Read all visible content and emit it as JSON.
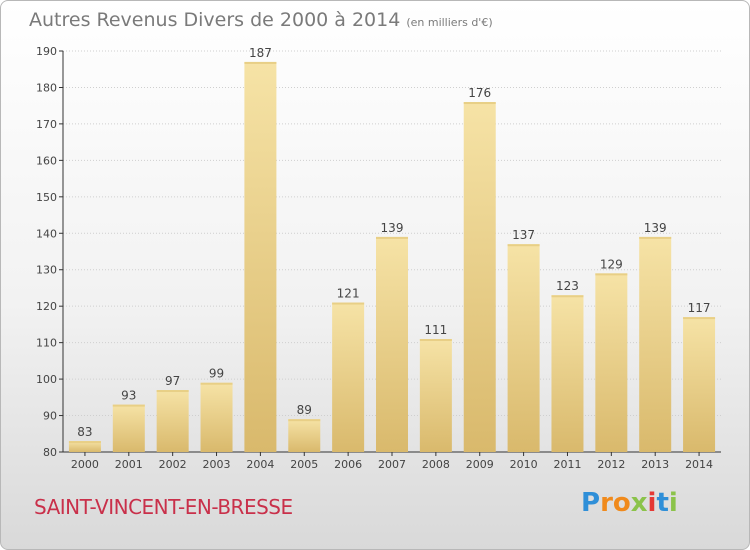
{
  "title": "Autres Revenus Divers de 2000 à 2014",
  "subtitle": "(en milliers d'€)",
  "commune": "SAINT-VINCENT-EN-BRESSE",
  "logo": {
    "text": "Proxiti",
    "letters": [
      {
        "ch": "P",
        "color": "#2f8fd8"
      },
      {
        "ch": "r",
        "color": "#f08a1c"
      },
      {
        "ch": "o",
        "color": "#f08a1c"
      },
      {
        "ch": "x",
        "color": "#8bc34a"
      },
      {
        "ch": "i",
        "color": "#e53935"
      },
      {
        "ch": "t",
        "color": "#2f8fd8"
      },
      {
        "ch": "i",
        "color": "#8bc34a"
      }
    ]
  },
  "colors": {
    "bar_light": "#f6e3a6",
    "bar_dark": "#d9b96c",
    "grid": "#cfcfcf",
    "axis": "#333333"
  },
  "chart_data": {
    "type": "bar",
    "categories": [
      "2000",
      "2001",
      "2002",
      "2003",
      "2004",
      "2005",
      "2006",
      "2007",
      "2008",
      "2009",
      "2010",
      "2011",
      "2012",
      "2013",
      "2014"
    ],
    "values": [
      83,
      93,
      97,
      99,
      187,
      89,
      121,
      139,
      111,
      176,
      137,
      123,
      129,
      139,
      117
    ],
    "data_labels": [
      "83",
      "93",
      "97",
      "99",
      "187",
      "89",
      "121",
      "139",
      "111",
      "176",
      "137",
      "123",
      "129",
      "139",
      "117"
    ],
    "title": "Autres Revenus Divers de 2000 à 2014",
    "xlabel": "",
    "ylabel": "",
    "ylim": [
      80,
      190
    ],
    "yticks": [
      80,
      90,
      100,
      110,
      120,
      130,
      140,
      150,
      160,
      170,
      180,
      190
    ],
    "grid": true
  }
}
